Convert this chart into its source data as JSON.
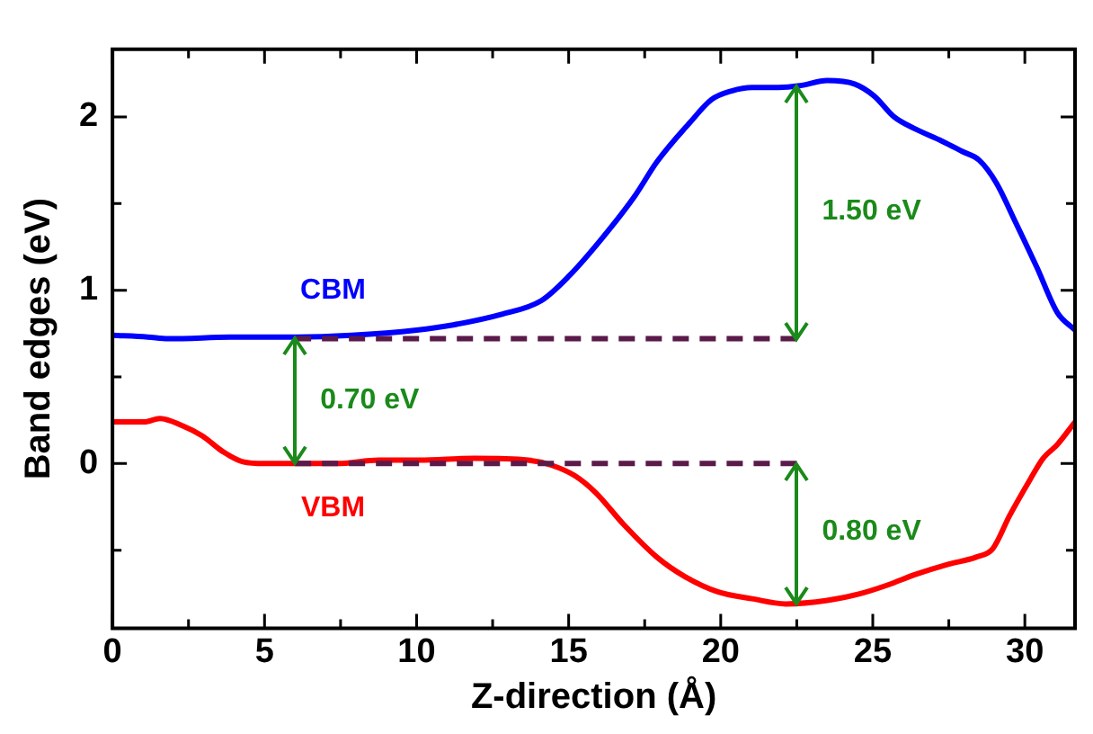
{
  "chart_data": {
    "type": "line",
    "xlabel": "Z-direction (Å)",
    "ylabel": "Band edges (eV)",
    "xlim": [
      0,
      31.65
    ],
    "ylim": [
      -0.95,
      2.39
    ],
    "xticks": [
      0,
      {
        "value": 2.5,
        "label": null
      },
      5,
      {
        "value": 7.5,
        "label": null
      },
      10,
      {
        "value": 12.5,
        "label": null
      },
      15,
      {
        "value": 17.5,
        "label": null
      },
      20,
      {
        "value": 22.5,
        "label": null
      },
      25,
      {
        "value": 27.5,
        "label": null
      },
      30
    ],
    "yticks": [
      {
        "value": -0.5,
        "label": null
      },
      0,
      {
        "value": 0.5,
        "label": null
      },
      1,
      {
        "value": 1.5,
        "label": null
      },
      2
    ],
    "grid": false,
    "legend": false,
    "marker": "none",
    "series": [
      {
        "name": "CBM",
        "color": "#0000ff",
        "line_style": "solid",
        "x": [
          0,
          1.16,
          1.83,
          4.06,
          6.07,
          7.86,
          10,
          11.2,
          12.77,
          14.1,
          15,
          16.1,
          17.2,
          17.9,
          19.0,
          19.7,
          20.36,
          21.03,
          21.9,
          22.6,
          23.5,
          24.4,
          25.05,
          25.7,
          26.4,
          27.28,
          27.95,
          28.5,
          29.06,
          29.7,
          30.4,
          31.07,
          31.65
        ],
        "values": [
          0.74,
          0.73,
          0.72,
          0.73,
          0.73,
          0.74,
          0.77,
          0.8,
          0.86,
          0.94,
          1.08,
          1.3,
          1.55,
          1.74,
          1.97,
          2.1,
          2.15,
          2.17,
          2.17,
          2.18,
          2.21,
          2.19,
          2.12,
          2.0,
          1.93,
          1.86,
          1.8,
          1.75,
          1.62,
          1.39,
          1.13,
          0.87,
          0.77
        ]
      },
      {
        "name": "VBM",
        "color": "#ff0000",
        "line_style": "solid",
        "x": [
          0,
          1.05,
          1.56,
          2.28,
          2.95,
          3.62,
          4.29,
          5,
          6.07,
          7.4,
          8.75,
          10.1,
          11.9,
          13.66,
          14.44,
          15.2,
          15.9,
          16.8,
          17.9,
          18.8,
          19.9,
          21.03,
          22.14,
          23.5,
          24.6,
          25.5,
          26.4,
          27.5,
          28.4,
          28.95,
          29.5,
          30.18,
          30.6,
          31.07,
          31.65
        ],
        "values": [
          0.24,
          0.24,
          0.26,
          0.22,
          0.16,
          0.07,
          0.01,
          0,
          0,
          0,
          0.02,
          0.02,
          0.03,
          0.02,
          -0.01,
          -0.07,
          -0.17,
          -0.35,
          -0.54,
          -0.65,
          -0.74,
          -0.78,
          -0.81,
          -0.79,
          -0.75,
          -0.7,
          -0.64,
          -0.58,
          -0.54,
          -0.49,
          -0.3,
          -0.09,
          0.03,
          0.11,
          0.24
        ]
      },
      {
        "color": "#5a1a4a",
        "line_style": "dashed",
        "x": [
          6,
          22.5
        ],
        "values": [
          0.72,
          0.72
        ]
      },
      {
        "color": "#5a1a4a",
        "line_style": "dashed",
        "x": [
          6,
          22.5
        ],
        "values": [
          0,
          0
        ]
      }
    ],
    "annotations": [
      "1.50 eV",
      "0.70 eV",
      "0.80 eV"
    ]
  }
}
